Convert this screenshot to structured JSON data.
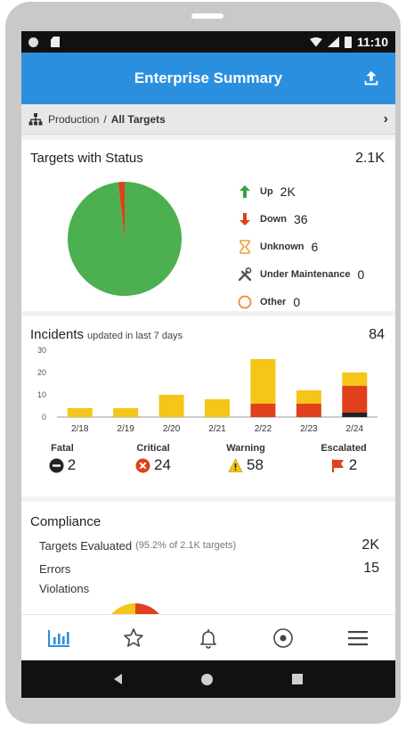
{
  "status_bar": {
    "time": "11:10"
  },
  "app_bar": {
    "title": "Enterprise Summary",
    "share_icon": "upload-icon"
  },
  "breadcrumb": {
    "parent": "Production",
    "separator": "/",
    "current": "All Targets"
  },
  "targets": {
    "title": "Targets with Status",
    "total": "2.1K",
    "legend": [
      {
        "name": "Up",
        "value": "2K",
        "icon": "arrow-up-icon",
        "color": "#3aa23a"
      },
      {
        "name": "Down",
        "value": "36",
        "icon": "arrow-down-icon",
        "color": "#e0401c"
      },
      {
        "name": "Unknown",
        "value": "6",
        "icon": "hourglass-icon",
        "color": "#f0a030"
      },
      {
        "name": "Under Maintenance",
        "value": "0",
        "icon": "wrench-icon",
        "color": "#555555"
      },
      {
        "name": "Other",
        "value": "0",
        "icon": "circle-icon",
        "color": "#f08a30"
      }
    ],
    "pie": {
      "up_fraction": 0.982,
      "down_fraction": 0.018,
      "up_color": "#4caf50",
      "down_color": "#e0401c"
    }
  },
  "incidents": {
    "title": "Incidents",
    "subtitle": "updated in last 7 days",
    "total": "84",
    "severities": [
      {
        "label": "Fatal",
        "value": "2",
        "icon": "minus-circle-icon",
        "color": "#222222"
      },
      {
        "label": "Critical",
        "value": "24",
        "icon": "x-circle-icon",
        "color": "#e0401c"
      },
      {
        "label": "Warning",
        "value": "58",
        "icon": "warning-triangle-icon",
        "color": "#f5c518"
      },
      {
        "label": "Escalated",
        "value": "2",
        "icon": "flag-icon",
        "color": "#e0401c"
      }
    ]
  },
  "chart_data": {
    "type": "bar",
    "stacked": true,
    "categories": [
      "2/18",
      "2/19",
      "2/20",
      "2/21",
      "2/22",
      "2/23",
      "2/24"
    ],
    "series": [
      {
        "color": "#222222",
        "values": [
          0,
          0,
          0,
          0,
          0,
          0,
          2
        ]
      },
      {
        "color": "#e0401c",
        "values": [
          0,
          0,
          0,
          0,
          6,
          6,
          12
        ]
      },
      {
        "color": "#f5c518",
        "values": [
          4,
          4,
          10,
          8,
          20,
          6,
          6
        ]
      }
    ],
    "yticks": [
      0,
      10,
      20,
      30
    ],
    "ylim": [
      0,
      30
    ],
    "grid": false
  },
  "compliance": {
    "title": "Compliance",
    "rows": [
      {
        "label": "Targets Evaluated",
        "note": "(95.2% of 2.1K targets)",
        "value": "2K"
      },
      {
        "label": "Errors",
        "note": "",
        "value": "15"
      },
      {
        "label": "Violations",
        "note": "",
        "value": ""
      }
    ]
  },
  "bottom_nav": [
    {
      "icon": "bar-chart-icon",
      "active": true
    },
    {
      "icon": "star-icon",
      "active": false
    },
    {
      "icon": "bell-icon",
      "active": false
    },
    {
      "icon": "target-icon",
      "active": false
    },
    {
      "icon": "menu-icon",
      "active": false
    }
  ]
}
